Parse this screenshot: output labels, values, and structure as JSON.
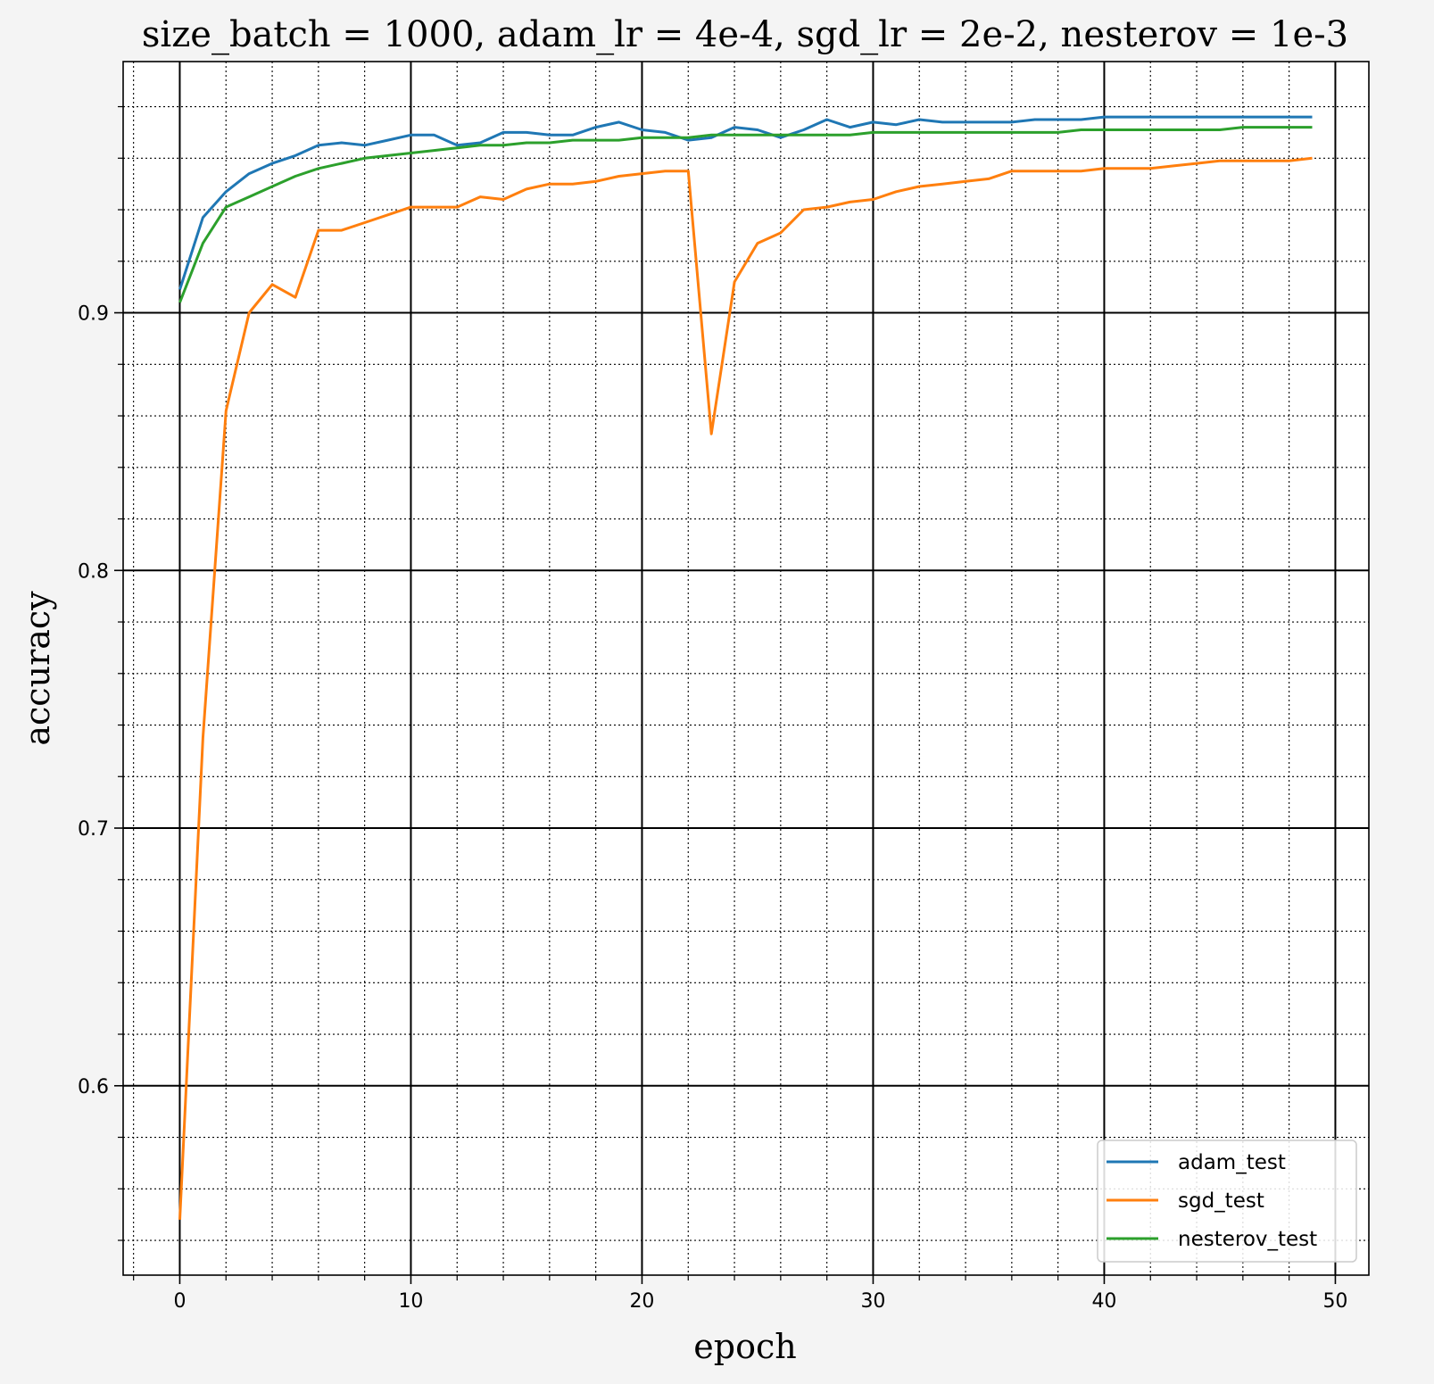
{
  "chart_data": {
    "type": "line",
    "title": "size_batch = 1000, adam_lr = 4e-4, sgd_lr = 2e-2, nesterov = 1e-3",
    "xlabel": "epoch",
    "ylabel": "accuracy",
    "xlim": [
      -2.45,
      51.45
    ],
    "ylim": [
      0.5265,
      0.9975
    ],
    "x_major_ticks": [
      0,
      10,
      20,
      30,
      40,
      50
    ],
    "x_minor_step": 2,
    "y_major_ticks": [
      0.6,
      0.7,
      0.8,
      0.9
    ],
    "y_minor_step": 0.02,
    "x_tick_labels": [
      "0",
      "10",
      "20",
      "30",
      "40",
      "50"
    ],
    "y_tick_labels": [
      "0.6",
      "0.7",
      "0.8",
      "0.9"
    ],
    "grid": {
      "major": "solid-black",
      "minor": "dotted"
    },
    "legend_position": "bottom-right",
    "x": [
      0,
      1,
      2,
      3,
      4,
      5,
      6,
      7,
      8,
      9,
      10,
      11,
      12,
      13,
      14,
      15,
      16,
      17,
      18,
      19,
      20,
      21,
      22,
      23,
      24,
      25,
      26,
      27,
      28,
      29,
      30,
      31,
      32,
      33,
      34,
      35,
      36,
      37,
      38,
      39,
      40,
      41,
      42,
      43,
      44,
      45,
      46,
      47,
      48,
      49
    ],
    "series": [
      {
        "name": "adam_test",
        "color": "#1f77b4",
        "values": [
          0.909,
          0.937,
          0.947,
          0.954,
          0.958,
          0.961,
          0.965,
          0.966,
          0.965,
          0.967,
          0.969,
          0.969,
          0.965,
          0.966,
          0.97,
          0.97,
          0.969,
          0.969,
          0.972,
          0.974,
          0.971,
          0.97,
          0.967,
          0.968,
          0.972,
          0.971,
          0.968,
          0.971,
          0.975,
          0.972,
          0.974,
          0.973,
          0.975,
          0.974,
          0.974,
          0.974,
          0.974,
          0.975,
          0.975,
          0.975,
          0.976,
          0.976,
          0.976,
          0.976,
          0.976,
          0.976,
          0.976,
          0.976,
          0.976,
          0.976
        ]
      },
      {
        "name": "sgd_test",
        "color": "#ff7f0e",
        "values": [
          0.548,
          0.735,
          0.862,
          0.9,
          0.911,
          0.906,
          0.932,
          0.932,
          0.935,
          0.938,
          0.941,
          0.941,
          0.941,
          0.945,
          0.944,
          0.948,
          0.95,
          0.95,
          0.951,
          0.953,
          0.954,
          0.955,
          0.955,
          0.853,
          0.912,
          0.927,
          0.931,
          0.94,
          0.941,
          0.943,
          0.944,
          0.947,
          0.949,
          0.95,
          0.951,
          0.952,
          0.955,
          0.955,
          0.955,
          0.955,
          0.956,
          0.956,
          0.956,
          0.957,
          0.958,
          0.959,
          0.959,
          0.959,
          0.959,
          0.96
        ]
      },
      {
        "name": "nesterov_test",
        "color": "#2ca02c",
        "values": [
          0.904,
          0.927,
          0.941,
          0.945,
          0.949,
          0.953,
          0.956,
          0.958,
          0.96,
          0.961,
          0.962,
          0.963,
          0.964,
          0.965,
          0.965,
          0.966,
          0.966,
          0.967,
          0.967,
          0.967,
          0.968,
          0.968,
          0.968,
          0.969,
          0.969,
          0.969,
          0.969,
          0.969,
          0.969,
          0.969,
          0.97,
          0.97,
          0.97,
          0.97,
          0.97,
          0.97,
          0.97,
          0.97,
          0.97,
          0.971,
          0.971,
          0.971,
          0.971,
          0.971,
          0.971,
          0.971,
          0.972,
          0.972,
          0.972,
          0.972
        ]
      }
    ]
  }
}
